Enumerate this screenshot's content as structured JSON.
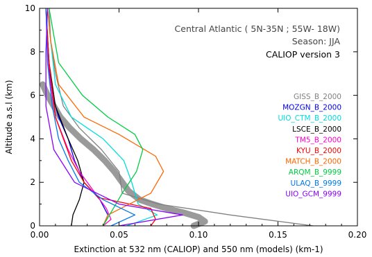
{
  "chart_data": {
    "type": "line",
    "annotations": [
      "Central Atlantic ( 5N-35N ; 55W- 18W)",
      "Season: JJA",
      "CALIOP version 3"
    ],
    "xlabel": "Extinction at 532 nm (CALIOP) and 550 nm (models) (km-1)",
    "ylabel": "Altitude a.s.l (km)",
    "xlim": [
      0,
      0.2
    ],
    "ylim": [
      0,
      10
    ],
    "xticks": [
      "0.00",
      "0.05",
      "0.10",
      "0.15",
      "0.20"
    ],
    "yticks": [
      "0",
      "2",
      "4",
      "6",
      "8",
      "10"
    ],
    "legend_position": "right",
    "grid": false,
    "observation": {
      "name": "CALIOP version 3",
      "color": "#9a9a9a",
      "y": [
        0.0,
        0.2,
        0.4,
        0.6,
        0.8,
        1.0,
        1.2,
        1.6,
        2.0,
        2.5,
        3.0,
        3.5,
        4.0,
        4.5,
        5.0,
        5.5,
        6.0,
        6.5
      ],
      "x": [
        0.097,
        0.104,
        0.1,
        0.091,
        0.08,
        0.071,
        0.063,
        0.056,
        0.052,
        0.047,
        0.041,
        0.034,
        0.026,
        0.019,
        0.013,
        0.009,
        0.005,
        0.002
      ]
    },
    "series": [
      {
        "name": "GISS_B_2000",
        "color": "#808080",
        "x": [
          0.172,
          0.12,
          0.075,
          0.052,
          0.05,
          0.039,
          0.025,
          0.015,
          0.01,
          0.007,
          0.006
        ],
        "y": [
          0.0,
          0.5,
          1.0,
          1.5,
          2.5,
          3.5,
          4.5,
          5.5,
          7.0,
          8.5,
          10.0
        ]
      },
      {
        "name": "MOZGN_B_2000",
        "color": "#0000ee",
        "x": [
          0.04,
          0.043,
          0.038,
          0.028,
          0.022,
          0.018,
          0.012,
          0.008,
          0.005,
          0.004
        ],
        "y": [
          0.0,
          0.5,
          1.2,
          2.0,
          3.0,
          4.0,
          5.0,
          6.0,
          8.0,
          10.0
        ]
      },
      {
        "name": "UIO_CTM_B_2000",
        "color": "#00dddd",
        "x": [
          0.055,
          0.074,
          0.062,
          0.058,
          0.053,
          0.04,
          0.02,
          0.01,
          0.007,
          0.005
        ],
        "y": [
          0.0,
          0.5,
          1.0,
          2.0,
          3.0,
          4.0,
          5.0,
          6.5,
          8.5,
          10.0
        ]
      },
      {
        "name": "LSCE_B_2000",
        "color": "#000000",
        "x": [
          0.02,
          0.021,
          0.025,
          0.028,
          0.024,
          0.018,
          0.01,
          0.006,
          0.004
        ],
        "y": [
          0.0,
          0.5,
          1.2,
          2.0,
          3.0,
          4.0,
          5.5,
          7.5,
          10.0
        ]
      },
      {
        "name": "TM5_B_2000",
        "color": "#ff00cc",
        "x": [
          0.04,
          0.045,
          0.042,
          0.035,
          0.025,
          0.018,
          0.01,
          0.006,
          0.004
        ],
        "y": [
          0.0,
          0.3,
          0.8,
          1.5,
          2.5,
          3.5,
          5.0,
          7.0,
          10.0
        ]
      },
      {
        "name": "KYU_B_2000",
        "color": "#ff0000",
        "x": [
          0.07,
          0.073,
          0.07,
          0.037,
          0.028,
          0.02,
          0.01,
          0.006,
          0.004
        ],
        "y": [
          0.0,
          0.3,
          0.8,
          1.3,
          2.0,
          3.0,
          5.0,
          7.5,
          10.0
        ]
      },
      {
        "name": "MATCH_B_2000",
        "color": "#ff6600",
        "x": [
          0.04,
          0.043,
          0.07,
          0.078,
          0.073,
          0.05,
          0.028,
          0.012,
          0.007,
          0.005
        ],
        "y": [
          0.0,
          0.5,
          1.5,
          2.5,
          3.2,
          4.2,
          5.0,
          6.5,
          8.5,
          10.0
        ]
      },
      {
        "name": "ARQM_B_9999",
        "color": "#00cc44",
        "x": [
          0.04,
          0.044,
          0.052,
          0.061,
          0.065,
          0.06,
          0.043,
          0.027,
          0.012,
          0.006
        ],
        "y": [
          0.0,
          0.5,
          1.5,
          2.5,
          3.5,
          4.2,
          5.0,
          6.0,
          7.5,
          10.0
        ]
      },
      {
        "name": "ULAQ_B_9999",
        "color": "#0077ee",
        "x": [
          0.045,
          0.06,
          0.04,
          0.025,
          0.018,
          0.012,
          0.008,
          0.005,
          0.004
        ],
        "y": [
          0.0,
          0.5,
          1.2,
          2.0,
          3.0,
          4.0,
          5.5,
          7.5,
          10.0
        ]
      },
      {
        "name": "UIO_GCM_9999",
        "color": "#8800ff",
        "x": [
          0.05,
          0.09,
          0.05,
          0.022,
          0.009,
          0.004,
          0.004,
          0.005
        ],
        "y": [
          0.0,
          0.5,
          1.0,
          2.0,
          3.5,
          5.5,
          8.0,
          10.0
        ]
      }
    ]
  }
}
